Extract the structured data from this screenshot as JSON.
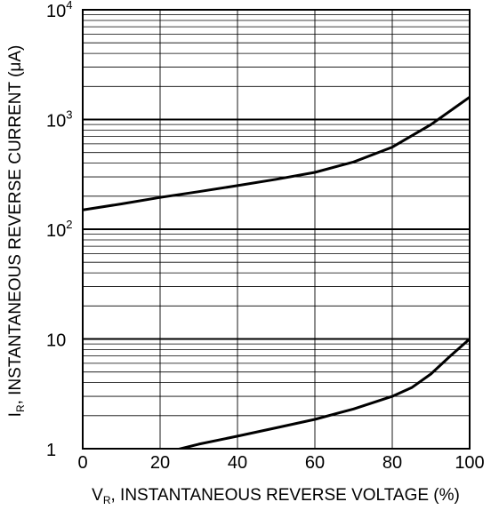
{
  "chart_data": {
    "type": "line",
    "x_axis": {
      "label_main": "V",
      "label_subscript": "R",
      "label_rest": ", INSTANTANEOUS REVERSE VOLTAGE (%)",
      "min": 0,
      "max": 100,
      "ticks": [
        0,
        20,
        40,
        60,
        80,
        100
      ],
      "tick_labels": [
        "0",
        "20",
        "40",
        "60",
        "80",
        "100"
      ]
    },
    "y_axis": {
      "label_main": "I",
      "label_subscript": "R",
      "label_rest": ", INSTANTANEOUS REVERSE CURRENT (μA)",
      "scale": "log",
      "min": 1,
      "max": 10000,
      "tick_labels": [
        {
          "value": 1,
          "base": "1",
          "exp": ""
        },
        {
          "value": 10,
          "base": "10",
          "exp": ""
        },
        {
          "value": 100,
          "base": "10",
          "exp": "2"
        },
        {
          "value": 1000,
          "base": "10",
          "exp": "3"
        },
        {
          "value": 10000,
          "base": "10",
          "exp": "4"
        }
      ]
    },
    "grid": true,
    "series": [
      {
        "values": [
          {
            "x": 0,
            "y": 150
          },
          {
            "x": 10,
            "y": 170
          },
          {
            "x": 20,
            "y": 195
          },
          {
            "x": 30,
            "y": 220
          },
          {
            "x": 40,
            "y": 250
          },
          {
            "x": 50,
            "y": 285
          },
          {
            "x": 60,
            "y": 330
          },
          {
            "x": 70,
            "y": 410
          },
          {
            "x": 80,
            "y": 560
          },
          {
            "x": 90,
            "y": 900
          },
          {
            "x": 100,
            "y": 1600
          }
        ]
      },
      {
        "values": [
          {
            "x": 20,
            "y": 0.9
          },
          {
            "x": 30,
            "y": 1.1
          },
          {
            "x": 40,
            "y": 1.3
          },
          {
            "x": 50,
            "y": 1.55
          },
          {
            "x": 60,
            "y": 1.85
          },
          {
            "x": 70,
            "y": 2.3
          },
          {
            "x": 80,
            "y": 3
          },
          {
            "x": 85,
            "y": 3.6
          },
          {
            "x": 90,
            "y": 4.8
          },
          {
            "x": 95,
            "y": 7
          },
          {
            "x": 100,
            "y": 10
          }
        ]
      }
    ]
  }
}
